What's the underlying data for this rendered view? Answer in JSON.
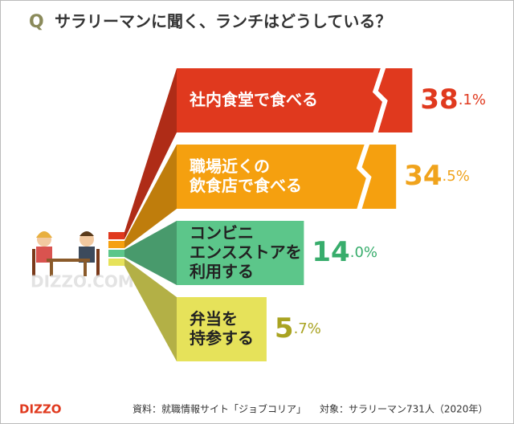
{
  "chart_data": {
    "type": "bar",
    "title_prefix": "Q",
    "title": "サラリーマンに聞く、ランチはどうしている？",
    "categories": [
      "社内食堂で食べる",
      "職場近くの\n飲食店で食べる",
      "コンビニ\nエンスストアを\n利用する",
      "弁当を\n持参する"
    ],
    "values": [
      38.1,
      34.5,
      14.0,
      5.7
    ],
    "value_labels": [
      "38.1%",
      "34.5%",
      "14.0%",
      "5.7%"
    ],
    "colors": [
      "#e0391e",
      "#f5a00f",
      "#5cc68a",
      "#e6e25a"
    ],
    "label_colors": [
      "#e0391e",
      "#f0a31c",
      "#38ad6c",
      "#a9a321"
    ],
    "source": "資料：就職情報サイト「ジョブコリア」",
    "target": "対象：サラリーマン731人（2020年）",
    "logo": "DIZZO",
    "watermark": "DIZZO.COM"
  }
}
